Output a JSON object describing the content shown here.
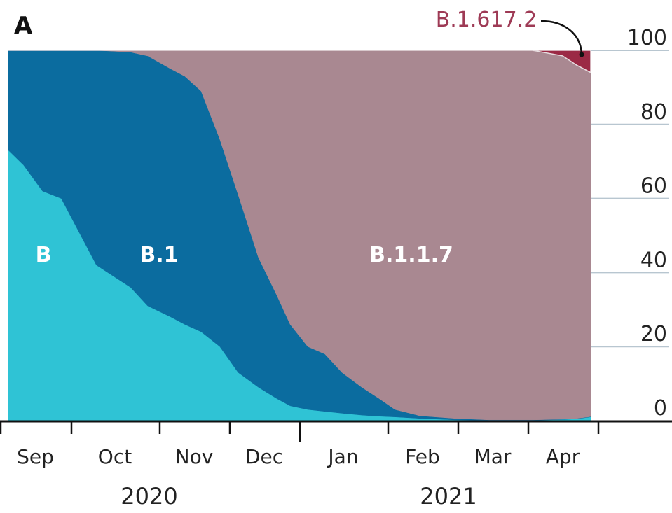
{
  "panel_label": "A",
  "chart_data": {
    "type": "area",
    "stacked": true,
    "ylim": [
      0,
      100
    ],
    "yticks": [
      "0",
      "20",
      "40",
      "60",
      "80",
      "100"
    ],
    "ytick_values": [
      0,
      20,
      40,
      60,
      80,
      100
    ],
    "grid": true,
    "x_month_labels": [
      "Sep",
      "Oct",
      "Nov",
      "Dec",
      "Jan",
      "Feb",
      "Mar",
      "Apr"
    ],
    "x_year_labels": [
      "2020",
      "2021"
    ],
    "x": [
      "2020-09-04",
      "2020-09-11",
      "2020-09-19",
      "2020-09-27",
      "2020-10-10",
      "2020-10-22",
      "2020-10-28",
      "2020-11-06",
      "2020-11-12",
      "2020-11-19",
      "2020-11-27",
      "2020-12-05",
      "2020-12-14",
      "2020-12-22",
      "2020-12-28",
      "2021-01-04",
      "2021-01-10",
      "2021-01-16",
      "2021-01-23",
      "2021-01-29",
      "2021-02-04",
      "2021-02-14",
      "2021-02-28",
      "2021-03-15",
      "2021-04-03",
      "2021-04-16",
      "2021-04-22",
      "2021-04-28"
    ],
    "series": [
      {
        "name": "B",
        "color": "#2fc3d5",
        "values": [
          73,
          69,
          62,
          60,
          42,
          36,
          31,
          28,
          26,
          24,
          20,
          13,
          9,
          6,
          4,
          3,
          2.5,
          2,
          1.5,
          1.2,
          1,
          0.6,
          0.2,
          0.1,
          0.1,
          0.3,
          0.5,
          1
        ]
      },
      {
        "name": "B.1",
        "color": "#0b6c9f",
        "values": [
          27,
          31,
          38,
          40,
          58,
          63.5,
          67.5,
          67,
          67,
          65,
          56,
          48,
          35,
          28,
          22,
          17,
          15.5,
          11,
          7.5,
          4.8,
          2,
          0.7,
          0.4,
          0.1,
          0.1,
          0.1,
          0.1,
          0.1
        ]
      },
      {
        "name": "B.1.1.7",
        "color": "#a98891",
        "values": [
          0,
          0,
          0,
          0,
          0,
          0.5,
          1.5,
          5,
          7,
          11,
          24,
          39,
          56,
          66,
          74,
          80,
          82,
          87,
          91,
          94,
          97,
          98.7,
          99.4,
          99.8,
          99.8,
          98.1,
          95.4,
          92.9
        ]
      },
      {
        "name": "B.1.617.2",
        "color": "#9b2a45",
        "values": [
          0,
          0,
          0,
          0,
          0,
          0,
          0,
          0,
          0,
          0,
          0,
          0,
          0,
          0,
          0,
          0,
          0,
          0,
          0,
          0,
          0,
          0,
          0,
          0,
          0,
          1.5,
          4,
          6
        ]
      }
    ]
  }
}
